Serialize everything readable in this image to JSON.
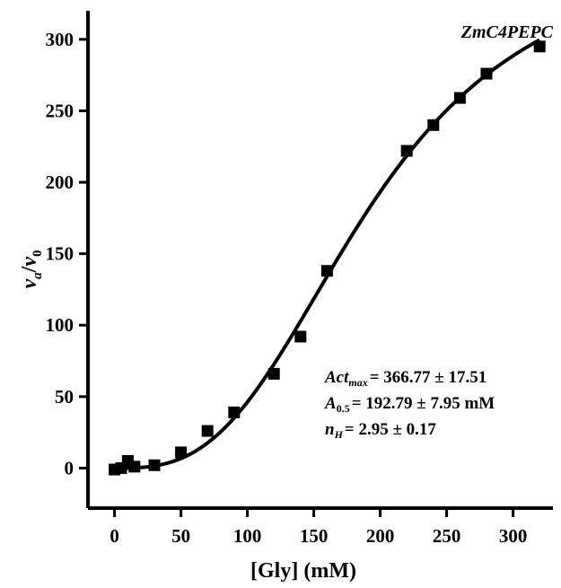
{
  "chart_data": {
    "type": "scatter",
    "title": "ZmC4PEPC",
    "xlabel": "[Gly] (mM)",
    "ylabel": {
      "v": "v",
      "sub_a": "a",
      "slash": "/",
      "v2": "v",
      "sub_0": "0"
    },
    "xlim": [
      -20,
      330
    ],
    "ylim": [
      -28,
      320
    ],
    "x_ticks": [
      0,
      50,
      100,
      150,
      200,
      250,
      300
    ],
    "y_ticks": [
      0,
      50,
      100,
      150,
      200,
      250,
      300
    ],
    "grid": false,
    "series": [
      {
        "kind": "points",
        "marker": "square",
        "x": [
          0,
          5,
          10,
          15,
          30,
          50,
          70,
          90,
          120,
          140,
          160,
          220,
          240,
          260,
          280,
          320
        ],
        "y": [
          -1,
          0,
          5,
          1,
          2,
          11,
          26,
          39,
          66,
          92,
          138,
          222,
          240,
          259,
          276,
          295
        ]
      },
      {
        "kind": "fit",
        "model": "hill",
        "Act_max": 366.77,
        "A05": 192.79,
        "nH": 2.95
      }
    ],
    "annotations": {
      "act_max": {
        "main": "Act",
        "sub": "max",
        "value": "= 366.77 ± 17.51"
      },
      "a05": {
        "main": "A",
        "sub": "0.5",
        "value": "= 192.79 ± 7.95 mM"
      },
      "nh": {
        "main": "n",
        "sub": "H",
        "value": "= 2.95 ± 0.17"
      }
    }
  }
}
